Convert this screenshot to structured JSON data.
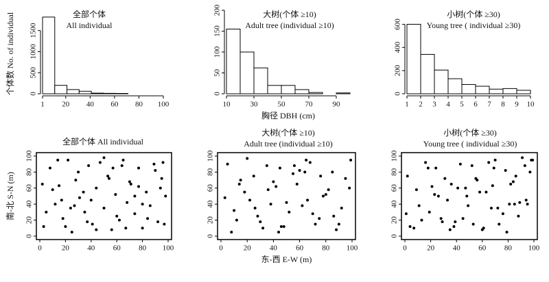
{
  "chart_data": [
    {
      "type": "histogram",
      "title": "全部个体",
      "subtitle": "All individual",
      "y_label": "个体数 No. of individual",
      "bins": [
        1,
        11,
        21,
        31,
        41,
        51,
        61,
        71
      ],
      "values": [
        1820,
        200,
        100,
        60,
        15,
        10,
        8
      ],
      "xlim": [
        1,
        100
      ],
      "xticks": [
        1,
        20,
        40,
        60,
        80,
        100
      ],
      "ylim": [
        0,
        1900
      ],
      "yticks": [
        0,
        500,
        1000,
        1500
      ],
      "color": "#ffffff"
    },
    {
      "type": "histogram",
      "title": "大树(个体 ≥10)",
      "subtitle": "Adult tree (individual ≥10)",
      "x_label": "胸径 DBH (cm)",
      "bins": [
        10,
        20,
        30,
        40,
        50,
        60,
        70,
        80,
        90,
        100
      ],
      "values": [
        155,
        100,
        62,
        20,
        20,
        10,
        3,
        0,
        2
      ],
      "xlim": [
        10,
        100
      ],
      "xticks": [
        10,
        30,
        50,
        70,
        90
      ],
      "ylim": [
        0,
        200
      ],
      "yticks": [
        0,
        50,
        100,
        150,
        200
      ],
      "color": "#ffffff"
    },
    {
      "type": "histogram",
      "title": "小树(个体 ≥30)",
      "subtitle": "Young tree ( individual ≥30)",
      "bins": [
        1,
        2,
        3,
        4,
        5,
        6,
        7,
        8,
        9,
        10
      ],
      "values": [
        600,
        340,
        205,
        130,
        80,
        65,
        40,
        45,
        30
      ],
      "xlim": [
        1,
        10
      ],
      "xticks": [
        1,
        2,
        3,
        4,
        5,
        6,
        7,
        8,
        9,
        10
      ],
      "ylim": [
        0,
        650
      ],
      "yticks": [
        0,
        200,
        400,
        600
      ],
      "color": "#ffffff"
    },
    {
      "type": "scatter",
      "title": "全部个体 All individual",
      "y_label": "南-北 S-N (m)",
      "x": [
        3,
        8,
        12,
        15,
        18,
        22,
        25,
        28,
        31,
        35,
        38,
        41,
        44,
        47,
        50,
        53,
        56,
        59,
        62,
        65,
        68,
        71,
        74,
        77,
        80,
        83,
        86,
        89,
        92,
        95,
        98,
        5,
        10,
        20,
        30,
        40,
        50,
        60,
        70,
        80,
        90,
        97,
        14,
        24,
        34,
        44,
        54,
        64,
        74,
        84,
        94,
        2,
        17,
        37,
        57,
        77,
        96,
        27,
        67
      ],
      "y": [
        12,
        85,
        40,
        63,
        22,
        95,
        5,
        70,
        48,
        30,
        88,
        15,
        60,
        92,
        35,
        75,
        8,
        52,
        20,
        95,
        42,
        65,
        28,
        85,
        10,
        55,
        38,
        90,
        18,
        72,
        50,
        30,
        58,
        12,
        80,
        45,
        98,
        25,
        68,
        40,
        82,
        15,
        95,
        35,
        55,
        8,
        72,
        88,
        50,
        22,
        60,
        65,
        45,
        18,
        85,
        62,
        92,
        38,
        10
      ],
      "xlim": [
        0,
        100
      ],
      "xticks": [
        0,
        20,
        40,
        60,
        80,
        100
      ],
      "ylim": [
        0,
        100
      ],
      "yticks": [
        0,
        20,
        40,
        60,
        80,
        100
      ],
      "color": "#000000"
    },
    {
      "type": "scatter",
      "title": "大树(个体 ≥10)",
      "subtitle": "Adult tree (individual ≥10)",
      "x_label": "东-西 E-W (m)",
      "x": [
        5,
        12,
        18,
        25,
        32,
        38,
        45,
        52,
        58,
        65,
        72,
        78,
        85,
        92,
        98,
        8,
        15,
        22,
        28,
        35,
        42,
        48,
        55,
        62,
        68,
        75,
        82,
        88,
        95,
        3,
        10,
        20,
        30,
        40,
        50,
        60,
        70,
        80,
        90,
        99,
        14,
        26,
        44,
        56,
        66,
        76,
        86,
        36,
        46,
        64
      ],
      "y": [
        90,
        20,
        55,
        75,
        10,
        40,
        85,
        30,
        65,
        95,
        15,
        50,
        80,
        35,
        60,
        5,
        70,
        45,
        25,
        88,
        62,
        12,
        78,
        38,
        92,
        22,
        58,
        8,
        72,
        48,
        32,
        97,
        18,
        68,
        42,
        82,
        28,
        52,
        15,
        95,
        65,
        35,
        5,
        88,
        45,
        75,
        25,
        58,
        12,
        80
      ],
      "xlim": [
        0,
        100
      ],
      "xticks": [
        0,
        20,
        40,
        60,
        80,
        100
      ],
      "ylim": [
        0,
        100
      ],
      "yticks": [
        0,
        20,
        40,
        60,
        80,
        100
      ],
      "color": "#000000"
    },
    {
      "type": "scatter",
      "title": "小树(个体 ≥30)",
      "subtitle": "Young tree ( individual ≥30)",
      "x": [
        2,
        7,
        11,
        16,
        21,
        24,
        29,
        33,
        36,
        41,
        45,
        48,
        52,
        55,
        60,
        63,
        67,
        70,
        73,
        78,
        81,
        84,
        88,
        91,
        94,
        97,
        4,
        9,
        19,
        26,
        31,
        39,
        43,
        49,
        58,
        61,
        69,
        76,
        82,
        89,
        93,
        99,
        13,
        23,
        35,
        47,
        53,
        65,
        72,
        86,
        95,
        1,
        18,
        38,
        56,
        79,
        98,
        28,
        68,
        85
      ],
      "y": [
        75,
        10,
        38,
        92,
        62,
        85,
        18,
        45,
        65,
        60,
        22,
        50,
        88,
        72,
        8,
        55,
        35,
        95,
        15,
        82,
        40,
        68,
        25,
        98,
        45,
        80,
        12,
        58,
        30,
        50,
        72,
        18,
        90,
        38,
        55,
        10,
        85,
        28,
        65,
        42,
        88,
        95,
        20,
        52,
        8,
        60,
        15,
        92,
        35,
        75,
        40,
        28,
        85,
        12,
        70,
        5,
        95,
        22,
        63,
        40
      ],
      "xlim": [
        0,
        100
      ],
      "xticks": [
        0,
        20,
        40,
        60,
        80,
        100
      ],
      "ylim": [
        0,
        100
      ],
      "yticks": [
        0,
        20,
        40,
        60,
        80,
        100
      ],
      "color": "#000000"
    }
  ]
}
